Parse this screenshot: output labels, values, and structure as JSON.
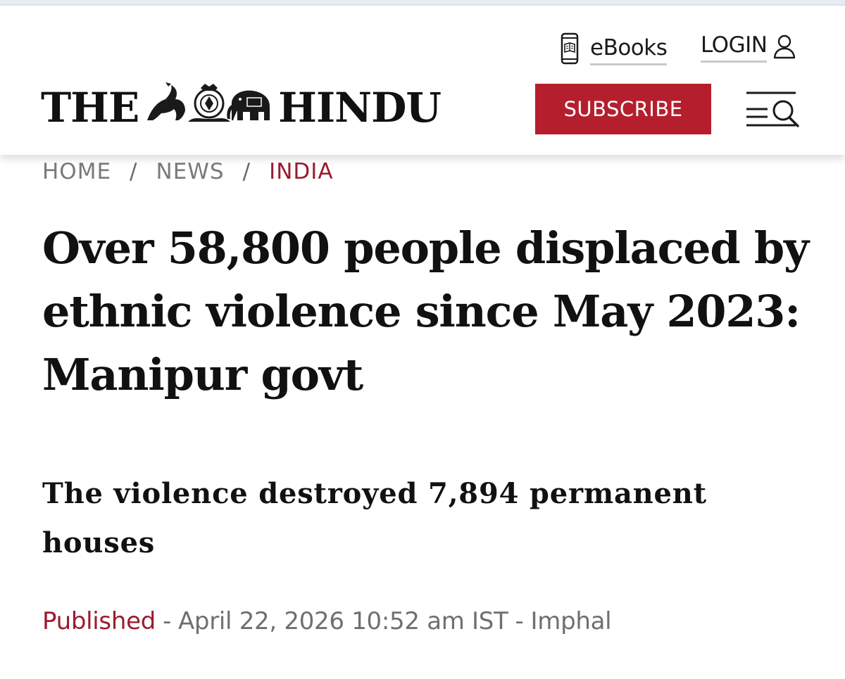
{
  "header": {
    "logo_left": "THE",
    "logo_right": "HINDU",
    "ebooks_label": "eBooks",
    "login_label": "LOGIN",
    "subscribe_label": "SUBSCRIBE",
    "brand_color": "#b51f2d"
  },
  "icons": {
    "ebooks": "ebook-reader-icon",
    "login": "user-icon",
    "menu": "menu-search-icon",
    "emblem": "logo-emblem"
  },
  "breadcrumb": {
    "items": [
      "HOME",
      "NEWS",
      "INDIA"
    ],
    "separator": "/",
    "active_color": "#9b1b30"
  },
  "article": {
    "headline": "Over 58,800 people displaced by ethnic violence since May 2023: Manipur govt",
    "subheadline": "The violence destroyed 7,894 permanent houses",
    "published_label": "Published",
    "published_date": "April 22, 2026 10:52 am IST",
    "dateline": "Imphal",
    "meta_separator": "-"
  }
}
